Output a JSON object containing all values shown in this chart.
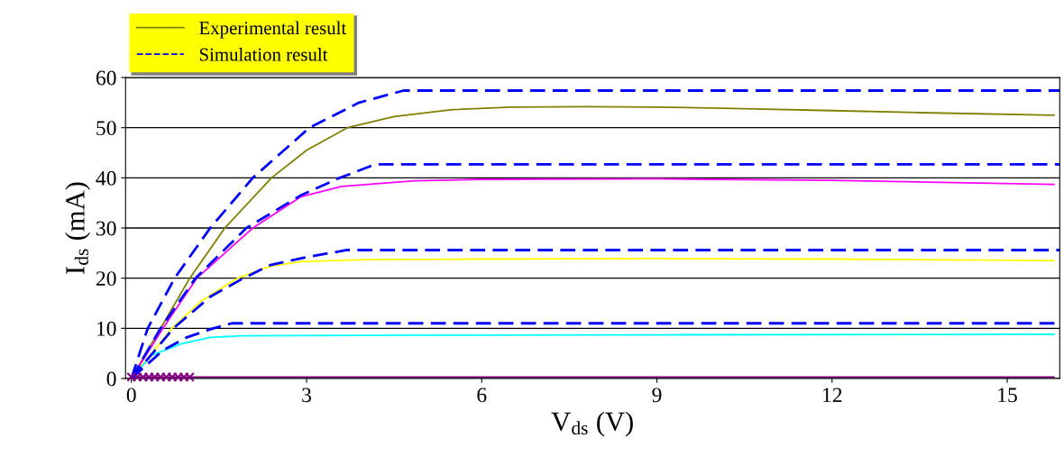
{
  "chart_data": {
    "type": "line",
    "xlabel": "V$_{ds}$ (V)",
    "ylabel": "I$_{ds}$ (mA)",
    "xlim": [
      -0.1,
      15.9
    ],
    "xticks": [
      0,
      3,
      6,
      9,
      12,
      15
    ],
    "ylim": [
      0,
      60
    ],
    "yticks": [
      0,
      10,
      20,
      30,
      40,
      50,
      60
    ],
    "grid": "y",
    "legend": "top left",
    "marker": "none",
    "series": [
      {
        "name": "Experimental result",
        "color": "#808000",
        "line_style": "solid",
        "x": [
          0,
          0.5,
          1.0,
          1.6,
          2.4,
          3.0,
          3.7,
          4.5,
          5.5,
          6.5,
          7.8,
          9,
          10.5,
          12,
          13.5,
          15.8
        ],
        "values": [
          0,
          10,
          20,
          30,
          40,
          45.5,
          50,
          52.2,
          53.6,
          54.1,
          54.2,
          54.1,
          53.8,
          53.4,
          53,
          52.5
        ]
      },
      {
        "color": "#ff00ff",
        "line_style": "solid",
        "x": [
          0,
          0.54,
          1.12,
          1.6,
          2.08,
          2.9,
          3.6,
          4.85,
          6,
          9,
          12,
          15.8
        ],
        "values": [
          0,
          10,
          20,
          25,
          30,
          36.2,
          38.3,
          39.4,
          39.7,
          39.8,
          39.5,
          38.7
        ]
      },
      {
        "color": "#ffff00",
        "line_style": "solid",
        "x": [
          0,
          0.69,
          1.2,
          1.82,
          2.38,
          2.9,
          4,
          6,
          9,
          12,
          15.8
        ],
        "values": [
          0,
          10,
          15.5,
          20,
          22.4,
          23.3,
          23.7,
          23.8,
          23.9,
          23.8,
          23.5
        ]
      },
      {
        "color": "#00ffff",
        "line_style": "solid",
        "x": [
          0,
          0.34,
          0.85,
          1.35,
          1.88,
          4,
          9,
          15.8
        ],
        "values": [
          0,
          4.6,
          6.9,
          8.2,
          8.5,
          8.6,
          8.7,
          8.8
        ]
      },
      {
        "color": "#800080",
        "line_style": "solid",
        "x": [
          0,
          15.8
        ],
        "values": [
          0.3,
          0.3
        ]
      },
      {
        "type": "scatter",
        "color": "#800080",
        "marker": "cross",
        "x": [
          0,
          0.1,
          0.2,
          0.3,
          0.4,
          0.5,
          0.6,
          0.7,
          0.8,
          0.9,
          1.0
        ],
        "values": [
          0.3,
          0.3,
          0.3,
          0.3,
          0.3,
          0.3,
          0.3,
          0.3,
          0.3,
          0.3,
          0.3
        ]
      },
      {
        "name": "Simulation result",
        "color": "#0000ff",
        "line_style": "dashed",
        "x": [
          0,
          0.28,
          0.74,
          1.35,
          2.08,
          3.05,
          3.9,
          4.66,
          15.9
        ],
        "values": [
          0,
          10,
          20,
          30,
          40,
          50,
          55,
          57.4,
          57.4
        ]
      },
      {
        "color": "#0000ff",
        "line_style": "dashed",
        "x": [
          0,
          0.5,
          1.1,
          1.97,
          2.9,
          3.57,
          4.18,
          15.9
        ],
        "values": [
          0,
          10,
          20,
          30,
          36.5,
          40,
          42.7,
          42.7
        ]
      },
      {
        "color": "#0000ff",
        "line_style": "dashed",
        "x": [
          0,
          0.72,
          1.35,
          1.92,
          2.38,
          3.0,
          3.69,
          15.9
        ],
        "values": [
          0,
          10,
          16.3,
          20,
          22.6,
          24.2,
          25.6,
          25.6
        ]
      },
      {
        "color": "#0000ff",
        "line_style": "dashed",
        "x": [
          0,
          0.54,
          0.95,
          1.35,
          1.72,
          15.9
        ],
        "values": [
          0,
          5.6,
          8.2,
          9.8,
          11.0,
          11.0
        ]
      }
    ]
  }
}
